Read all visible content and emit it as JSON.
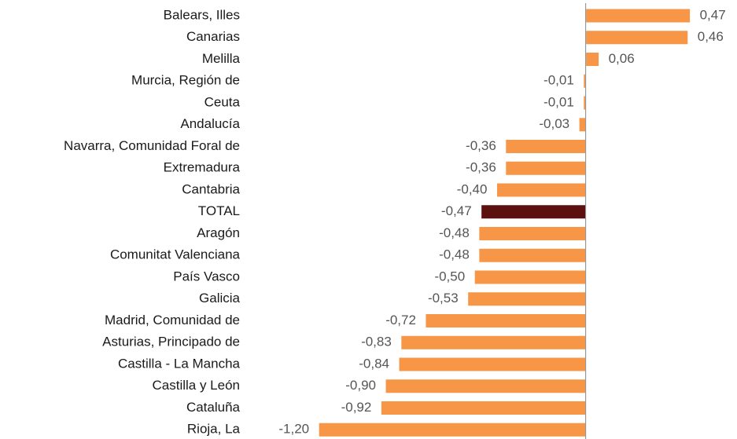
{
  "chart_data": {
    "type": "bar",
    "orientation": "horizontal",
    "categories": [
      "Balears, Illes",
      "Canarias",
      "Melilla",
      "Murcia, Región de",
      "Ceuta",
      "Andalucía",
      "Navarra, Comunidad Foral de",
      "Extremadura",
      "Cantabria",
      "TOTAL",
      "Aragón",
      "Comunitat Valenciana",
      "País Vasco",
      "Galicia",
      "Madrid, Comunidad de",
      "Asturias, Principado de",
      "Castilla - La Mancha",
      "Castilla y León",
      "Cataluña",
      "Rioja, La"
    ],
    "values": [
      0.47,
      0.46,
      0.06,
      -0.01,
      -0.01,
      -0.03,
      -0.36,
      -0.36,
      -0.4,
      -0.47,
      -0.48,
      -0.48,
      -0.5,
      -0.53,
      -0.72,
      -0.83,
      -0.84,
      -0.9,
      -0.92,
      -1.2
    ],
    "value_labels": [
      "0,47",
      "0,46",
      "0,06",
      "-0,01",
      "-0,01",
      "-0,03",
      "-0,36",
      "-0,36",
      "-0,40",
      "-0,47",
      "-0,48",
      "-0,48",
      "-0,50",
      "-0,53",
      "-0,72",
      "-0,83",
      "-0,84",
      "-0,90",
      "-0,92",
      "-1,20"
    ],
    "colors": [
      "#f79646",
      "#f79646",
      "#f79646",
      "#f79646",
      "#f79646",
      "#f79646",
      "#f79646",
      "#f79646",
      "#f79646",
      "#5c1010",
      "#f79646",
      "#f79646",
      "#f79646",
      "#f79646",
      "#f79646",
      "#f79646",
      "#f79646",
      "#f79646",
      "#f79646",
      "#f79646"
    ],
    "xlim": [
      -1.25,
      0.68
    ]
  }
}
